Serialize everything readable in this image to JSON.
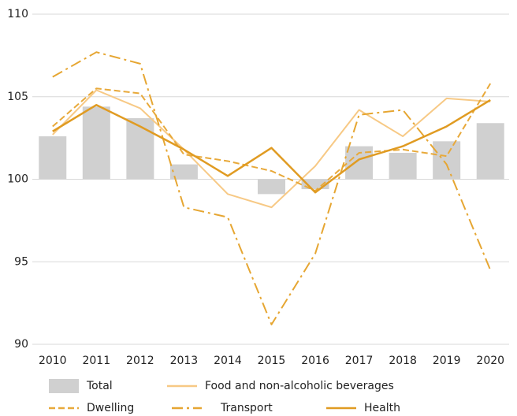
{
  "chart_data": {
    "type": "bar",
    "categories": [
      "2010",
      "2011",
      "2012",
      "2013",
      "2014",
      "2015",
      "2016",
      "2017",
      "2018",
      "2019",
      "2020"
    ],
    "ylim": [
      90,
      110
    ],
    "yticks": [
      90,
      95,
      100,
      105,
      110
    ],
    "grid": true,
    "series": [
      {
        "name": "Total",
        "type": "bar",
        "baseline": 100,
        "color": "#d0d0d0",
        "values": [
          102.6,
          104.4,
          103.7,
          100.9,
          100.0,
          99.1,
          99.4,
          102.0,
          101.6,
          102.3,
          103.4
        ]
      },
      {
        "name": "Food and non-alcoholic beverages",
        "type": "line",
        "dash": "solid",
        "color": "#f7c985",
        "values": [
          102.7,
          105.4,
          104.3,
          101.8,
          99.1,
          98.3,
          100.8,
          104.2,
          102.6,
          104.9,
          104.7
        ]
      },
      {
        "name": "Dwelling",
        "type": "line",
        "dash": "dashed",
        "color": "#e8a93a",
        "values": [
          103.2,
          105.5,
          105.2,
          101.5,
          101.1,
          100.5,
          99.3,
          101.6,
          101.8,
          101.4,
          105.8
        ]
      },
      {
        "name": "Transport",
        "type": "line",
        "dash": "dashdot",
        "color": "#e6a632",
        "values": [
          106.2,
          107.7,
          107.0,
          98.3,
          97.7,
          91.2,
          95.5,
          103.9,
          104.2,
          100.9,
          94.5
        ]
      },
      {
        "name": "Health",
        "type": "line",
        "dash": "solid",
        "color": "#e09b22",
        "values": [
          102.9,
          104.5,
          103.2,
          101.8,
          100.2,
          101.9,
          99.2,
          101.2,
          102.0,
          103.2,
          104.8
        ]
      }
    ]
  }
}
